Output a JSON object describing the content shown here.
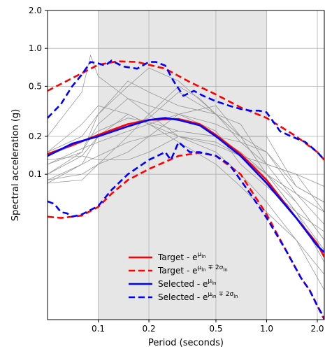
{
  "chart_data": {
    "type": "line",
    "title": "",
    "xlabel": "Period (seconds)",
    "ylabel": "Spectral acceleration (g)",
    "x_scale": "log",
    "y_scale": "log",
    "xlim": [
      0.05,
      2.2
    ],
    "ylim": [
      0.007,
      2.0
    ],
    "grid": true,
    "shaded_period_range": [
      0.1,
      1.0
    ],
    "x_ticks": [
      {
        "value": 0.1,
        "label": "0.1"
      },
      {
        "value": 0.2,
        "label": "0.2"
      },
      {
        "value": 0.5,
        "label": "0.5"
      },
      {
        "value": 1.0,
        "label": "1.0"
      },
      {
        "value": 2.0,
        "label": "2.0"
      }
    ],
    "y_ticks": [
      {
        "value": 0.1,
        "label": "0.1"
      },
      {
        "value": 0.2,
        "label": "0.2"
      },
      {
        "value": 0.5,
        "label": "0.5"
      },
      {
        "value": 1.0,
        "label": "1.0"
      },
      {
        "value": 2.0,
        "label": "2.0"
      }
    ],
    "legend_position": "lower-center",
    "series": [
      {
        "key": "target_median",
        "legend": {
          "text": "Target - e",
          "sup": "μ",
          "sub": "ln"
        },
        "color": "#ff0000",
        "style": "solid",
        "points": [
          [
            0.05,
            0.145
          ],
          [
            0.07,
            0.17
          ],
          [
            0.1,
            0.205
          ],
          [
            0.15,
            0.25
          ],
          [
            0.2,
            0.27
          ],
          [
            0.3,
            0.275
          ],
          [
            0.4,
            0.25
          ],
          [
            0.5,
            0.205
          ],
          [
            0.7,
            0.145
          ],
          [
            1.0,
            0.09
          ],
          [
            1.5,
            0.045
          ],
          [
            2.0,
            0.028
          ],
          [
            2.2,
            0.022
          ]
        ]
      },
      {
        "key": "target_upper",
        "legend": {
          "text": "Target - e",
          "sup": "μ",
          "sub": "ln",
          "sup_rest": " ∓ 2σ",
          "sub_rest": "ln"
        },
        "color": "#ff0000",
        "style": "dashed",
        "points": [
          [
            0.05,
            0.46
          ],
          [
            0.07,
            0.58
          ],
          [
            0.1,
            0.74
          ],
          [
            0.13,
            0.79
          ],
          [
            0.17,
            0.78
          ],
          [
            0.25,
            0.69
          ],
          [
            0.35,
            0.54
          ],
          [
            0.5,
            0.43
          ],
          [
            0.7,
            0.34
          ],
          [
            1.0,
            0.28
          ],
          [
            1.5,
            0.2
          ],
          [
            2.0,
            0.15
          ],
          [
            2.2,
            0.13
          ]
        ]
      },
      {
        "key": "target_lower",
        "color": "#ff0000",
        "style": "dashed",
        "points": [
          [
            0.05,
            0.046
          ],
          [
            0.06,
            0.045
          ],
          [
            0.08,
            0.047
          ],
          [
            0.1,
            0.055
          ],
          [
            0.12,
            0.07
          ],
          [
            0.15,
            0.09
          ],
          [
            0.2,
            0.11
          ],
          [
            0.3,
            0.14
          ],
          [
            0.4,
            0.148
          ],
          [
            0.5,
            0.14
          ],
          [
            0.7,
            0.1
          ],
          [
            1.0,
            0.048
          ],
          [
            1.3,
            0.025
          ],
          [
            1.6,
            0.015
          ],
          [
            1.8,
            0.012
          ],
          [
            2.2,
            0.007
          ]
        ]
      },
      {
        "key": "selected_median",
        "legend": {
          "text": "Selected - e",
          "sup": "μ",
          "sub": "ln"
        },
        "color": "#0000ff",
        "style": "solid",
        "points": [
          [
            0.05,
            0.14
          ],
          [
            0.07,
            0.175
          ],
          [
            0.1,
            0.2
          ],
          [
            0.15,
            0.24
          ],
          [
            0.2,
            0.27
          ],
          [
            0.25,
            0.28
          ],
          [
            0.3,
            0.27
          ],
          [
            0.4,
            0.245
          ],
          [
            0.5,
            0.2
          ],
          [
            0.7,
            0.14
          ],
          [
            1.0,
            0.085
          ],
          [
            1.5,
            0.045
          ],
          [
            2.0,
            0.027
          ],
          [
            2.2,
            0.024
          ]
        ]
      },
      {
        "key": "selected_upper",
        "legend": {
          "text": "Selected - e",
          "sup": "μ",
          "sub": "ln",
          "sup_rest": " ∓ 2σ",
          "sub_rest": "ln"
        },
        "color": "#0000ff",
        "style": "dashed",
        "points": [
          [
            0.05,
            0.28
          ],
          [
            0.06,
            0.36
          ],
          [
            0.07,
            0.5
          ],
          [
            0.08,
            0.62
          ],
          [
            0.09,
            0.78
          ],
          [
            0.1,
            0.76
          ],
          [
            0.11,
            0.73
          ],
          [
            0.12,
            0.8
          ],
          [
            0.14,
            0.72
          ],
          [
            0.17,
            0.69
          ],
          [
            0.2,
            0.78
          ],
          [
            0.22,
            0.78
          ],
          [
            0.25,
            0.73
          ],
          [
            0.28,
            0.55
          ],
          [
            0.32,
            0.42
          ],
          [
            0.37,
            0.46
          ],
          [
            0.42,
            0.42
          ],
          [
            0.5,
            0.38
          ],
          [
            0.6,
            0.35
          ],
          [
            0.7,
            0.33
          ],
          [
            0.8,
            0.32
          ],
          [
            0.9,
            0.32
          ],
          [
            1.0,
            0.31
          ],
          [
            1.2,
            0.22
          ],
          [
            1.4,
            0.2
          ],
          [
            1.7,
            0.18
          ],
          [
            2.0,
            0.15
          ],
          [
            2.2,
            0.13
          ]
        ]
      },
      {
        "key": "selected_lower",
        "color": "#0000ff",
        "style": "dashed",
        "points": [
          [
            0.05,
            0.061
          ],
          [
            0.055,
            0.058
          ],
          [
            0.06,
            0.05
          ],
          [
            0.065,
            0.049
          ],
          [
            0.07,
            0.046
          ],
          [
            0.08,
            0.048
          ],
          [
            0.09,
            0.052
          ],
          [
            0.1,
            0.056
          ],
          [
            0.12,
            0.075
          ],
          [
            0.15,
            0.1
          ],
          [
            0.2,
            0.13
          ],
          [
            0.25,
            0.15
          ],
          [
            0.27,
            0.13
          ],
          [
            0.3,
            0.18
          ],
          [
            0.35,
            0.15
          ],
          [
            0.4,
            0.15
          ],
          [
            0.5,
            0.14
          ],
          [
            0.6,
            0.12
          ],
          [
            0.7,
            0.09
          ],
          [
            0.8,
            0.07
          ],
          [
            1.0,
            0.045
          ],
          [
            1.3,
            0.025
          ],
          [
            1.6,
            0.015
          ],
          [
            1.8,
            0.012
          ],
          [
            2.0,
            0.009
          ],
          [
            2.2,
            0.0072
          ]
        ]
      }
    ],
    "record_spectra": [
      [
        [
          0.05,
          0.09
        ],
        [
          0.08,
          0.1
        ],
        [
          0.1,
          0.12
        ],
        [
          0.15,
          0.2
        ],
        [
          0.2,
          0.3
        ],
        [
          0.3,
          0.5
        ],
        [
          0.4,
          0.4
        ],
        [
          0.5,
          0.3
        ],
        [
          0.7,
          0.2
        ],
        [
          1.0,
          0.15
        ],
        [
          1.5,
          0.07
        ],
        [
          2.2,
          0.04
        ]
      ],
      [
        [
          0.05,
          0.1
        ],
        [
          0.08,
          0.15
        ],
        [
          0.1,
          0.25
        ],
        [
          0.15,
          0.4
        ],
        [
          0.2,
          0.35
        ],
        [
          0.3,
          0.3
        ],
        [
          0.5,
          0.22
        ],
        [
          0.7,
          0.12
        ],
        [
          1.0,
          0.08
        ],
        [
          1.5,
          0.05
        ],
        [
          2.2,
          0.02
        ]
      ],
      [
        [
          0.05,
          0.2
        ],
        [
          0.08,
          0.45
        ],
        [
          0.09,
          0.88
        ],
        [
          0.1,
          0.6
        ],
        [
          0.15,
          0.4
        ],
        [
          0.2,
          0.3
        ],
        [
          0.3,
          0.2
        ],
        [
          0.5,
          0.18
        ],
        [
          0.7,
          0.14
        ],
        [
          1.0,
          0.1
        ],
        [
          1.5,
          0.06
        ],
        [
          2.2,
          0.03
        ]
      ],
      [
        [
          0.05,
          0.15
        ],
        [
          0.08,
          0.2
        ],
        [
          0.1,
          0.3
        ],
        [
          0.15,
          0.55
        ],
        [
          0.2,
          0.45
        ],
        [
          0.3,
          0.35
        ],
        [
          0.5,
          0.3
        ],
        [
          0.7,
          0.25
        ],
        [
          1.0,
          0.12
        ],
        [
          1.5,
          0.1
        ],
        [
          2.2,
          0.05
        ]
      ],
      [
        [
          0.05,
          0.12
        ],
        [
          0.08,
          0.16
        ],
        [
          0.1,
          0.18
        ],
        [
          0.15,
          0.22
        ],
        [
          0.2,
          0.25
        ],
        [
          0.3,
          0.3
        ],
        [
          0.5,
          0.25
        ],
        [
          0.7,
          0.2
        ],
        [
          1.0,
          0.2
        ],
        [
          1.5,
          0.08
        ],
        [
          2.2,
          0.06
        ]
      ],
      [
        [
          0.05,
          0.085
        ],
        [
          0.08,
          0.09
        ],
        [
          0.1,
          0.12
        ],
        [
          0.15,
          0.15
        ],
        [
          0.2,
          0.2
        ],
        [
          0.3,
          0.3
        ],
        [
          0.5,
          0.35
        ],
        [
          0.7,
          0.2
        ],
        [
          1.0,
          0.1
        ],
        [
          1.5,
          0.05
        ],
        [
          2.2,
          0.035
        ]
      ],
      [
        [
          0.05,
          0.09
        ],
        [
          0.08,
          0.12
        ],
        [
          0.1,
          0.2
        ],
        [
          0.15,
          0.3
        ],
        [
          0.2,
          0.25
        ],
        [
          0.3,
          0.2
        ],
        [
          0.5,
          0.15
        ],
        [
          0.7,
          0.1
        ],
        [
          1.0,
          0.06
        ],
        [
          1.5,
          0.03
        ],
        [
          2.2,
          0.016
        ]
      ],
      [
        [
          0.05,
          0.14
        ],
        [
          0.08,
          0.18
        ],
        [
          0.1,
          0.22
        ],
        [
          0.15,
          0.28
        ],
        [
          0.2,
          0.26
        ],
        [
          0.3,
          0.22
        ],
        [
          0.5,
          0.2
        ],
        [
          0.7,
          0.15
        ],
        [
          1.0,
          0.1
        ],
        [
          1.5,
          0.07
        ],
        [
          2.2,
          0.05
        ]
      ],
      [
        [
          0.05,
          0.1
        ],
        [
          0.08,
          0.14
        ],
        [
          0.1,
          0.2
        ],
        [
          0.15,
          0.25
        ],
        [
          0.2,
          0.28
        ],
        [
          0.3,
          0.45
        ],
        [
          0.5,
          0.3
        ],
        [
          0.7,
          0.18
        ],
        [
          1.0,
          0.12
        ],
        [
          1.5,
          0.06
        ],
        [
          2.2,
          0.03
        ]
      ],
      [
        [
          0.05,
          0.15
        ],
        [
          0.08,
          0.25
        ],
        [
          0.1,
          0.35
        ],
        [
          0.15,
          0.3
        ],
        [
          0.2,
          0.25
        ],
        [
          0.3,
          0.18
        ],
        [
          0.5,
          0.12
        ],
        [
          0.7,
          0.08
        ],
        [
          1.0,
          0.05
        ],
        [
          1.5,
          0.03
        ],
        [
          2.2,
          0.012
        ]
      ],
      [
        [
          0.05,
          0.085
        ],
        [
          0.08,
          0.12
        ],
        [
          0.1,
          0.14
        ],
        [
          0.15,
          0.18
        ],
        [
          0.2,
          0.2
        ],
        [
          0.3,
          0.22
        ],
        [
          0.5,
          0.2
        ],
        [
          0.7,
          0.18
        ],
        [
          1.0,
          0.15
        ],
        [
          1.5,
          0.08
        ],
        [
          2.2,
          0.06
        ]
      ],
      [
        [
          0.05,
          0.12
        ],
        [
          0.08,
          0.15
        ],
        [
          0.1,
          0.3
        ],
        [
          0.15,
          0.5
        ],
        [
          0.2,
          0.7
        ],
        [
          0.3,
          0.55
        ],
        [
          0.5,
          0.3
        ],
        [
          0.7,
          0.2
        ],
        [
          1.0,
          0.1
        ],
        [
          1.5,
          0.05
        ],
        [
          2.2,
          0.025
        ]
      ],
      [
        [
          0.05,
          0.13
        ],
        [
          0.08,
          0.14
        ],
        [
          0.1,
          0.13
        ],
        [
          0.15,
          0.13
        ],
        [
          0.2,
          0.15
        ],
        [
          0.3,
          0.2
        ],
        [
          0.5,
          0.17
        ],
        [
          0.7,
          0.14
        ],
        [
          1.0,
          0.12
        ],
        [
          1.5,
          0.1
        ],
        [
          2.2,
          0.08
        ]
      ]
    ]
  }
}
